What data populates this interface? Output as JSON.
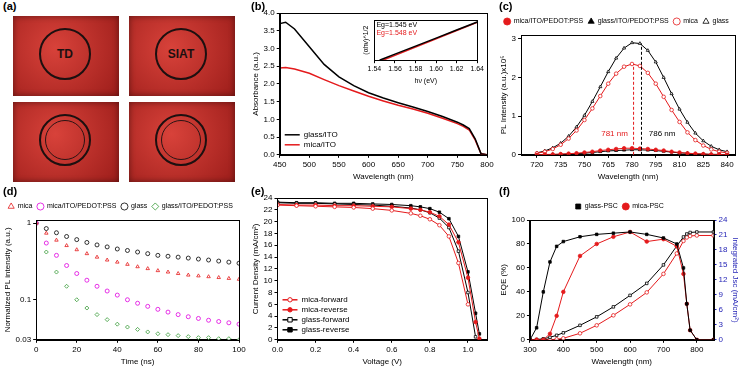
{
  "chart_data": [
    {
      "panel": "(a)",
      "type": "photo",
      "tiles": [
        {
          "label": "TD"
        },
        {
          "label": "SIAT"
        },
        {
          "label": null
        },
        {
          "label": null
        }
      ]
    },
    {
      "panel": "(b)",
      "type": "line",
      "x": [
        450,
        460,
        475,
        500,
        525,
        550,
        575,
        600,
        625,
        650,
        675,
        700,
        725,
        750,
        760,
        770,
        780,
        790,
        800
      ],
      "series": [
        {
          "name": "glass/ITO",
          "color": "#000000",
          "marker": "none",
          "line_style": "solid",
          "values": [
            3.7,
            3.74,
            3.55,
            3.05,
            2.55,
            2.2,
            1.95,
            1.75,
            1.6,
            1.47,
            1.35,
            1.22,
            1.08,
            0.92,
            0.84,
            0.74,
            0.45,
            0.03,
            0.0
          ]
        },
        {
          "name": "mica/ITO",
          "color": "#e41a1c",
          "marker": "none",
          "line_style": "solid",
          "values": [
            2.45,
            2.46,
            2.42,
            2.3,
            2.12,
            1.95,
            1.8,
            1.65,
            1.52,
            1.4,
            1.29,
            1.17,
            1.03,
            0.88,
            0.8,
            0.7,
            0.42,
            0.03,
            0.0
          ]
        }
      ],
      "xlabel": "Wavelength (nm)",
      "ylabel": "Absorbance (a.u.)",
      "xlim": [
        450,
        800
      ],
      "xticks": [
        450,
        500,
        550,
        600,
        650,
        700,
        750,
        800
      ],
      "ylim": [
        0,
        4
      ],
      "yticks": [
        {
          "value": 0,
          "label": "0.0"
        },
        {
          "value": 0.5,
          "label": "0.5"
        },
        {
          "value": 1,
          "label": "1.0"
        },
        {
          "value": 1.5,
          "label": "1.5"
        },
        {
          "value": 2,
          "label": "2.0"
        },
        {
          "value": 2.5,
          "label": "2.5"
        },
        {
          "value": 3,
          "label": "3.0"
        },
        {
          "value": 3.5,
          "label": "3.5"
        },
        {
          "value": 4,
          "label": "4.0"
        }
      ],
      "legend": "lower left",
      "grid": false,
      "inset": {
        "type": "line",
        "x": [
          1.545,
          1.548,
          1.56,
          1.58,
          1.6,
          1.62,
          1.64
        ],
        "series": [
          {
            "color": "#000000",
            "marker": "none",
            "line_style": "solid",
            "values": [
              0,
              0.03,
              0.15,
              0.35,
              0.55,
              0.75,
              0.95
            ]
          },
          {
            "color": "#e41a1c",
            "marker": "none",
            "line_style": "solid",
            "values": [
              null,
              0,
              0.12,
              0.33,
              0.53,
              0.74,
              0.94
            ]
          }
        ],
        "xlabel": "hν (eV)",
        "ylabel": "(αhν)^1/2",
        "xlim": [
          1.54,
          1.64
        ],
        "xticks": [
          1.54,
          1.56,
          1.58,
          {
            "value": 1.6,
            "label": "1.60"
          },
          1.62,
          1.64
        ],
        "ylim": [
          0,
          1
        ],
        "yticks": [],
        "tick_labels": "x",
        "grid": false,
        "annotations": [
          {
            "text": "Eg=1.545 eV",
            "color": "#000000",
            "x": 1.542,
            "y": 0.88
          },
          {
            "text": "Eg=1.548 eV",
            "color": "#e41a1c",
            "x": 1.542,
            "y": 0.68
          }
        ]
      }
    },
    {
      "panel": "(c)",
      "type": "line",
      "x": [
        720,
        725,
        730,
        735,
        740,
        745,
        750,
        755,
        760,
        765,
        770,
        775,
        780,
        785,
        790,
        795,
        800,
        805,
        810,
        815,
        820,
        825,
        830,
        835,
        840
      ],
      "series": [
        {
          "name": "mica/ITO/PEDOT:PSS",
          "color": "#e41a1c",
          "marker": "circle",
          "line_style": "solid",
          "values": [
            0,
            0.01,
            0.01,
            0.02,
            0.03,
            0.04,
            0.06,
            0.08,
            0.11,
            0.13,
            0.15,
            0.17,
            0.17,
            0.16,
            0.15,
            0.13,
            0.11,
            0.08,
            0.06,
            0.04,
            0.03,
            0.02,
            0.01,
            0.01,
            0
          ]
        },
        {
          "name": "glass/ITO/PEDOT:PSS",
          "color": "#000000",
          "marker": "triangle",
          "line_style": "solid",
          "values": [
            0,
            0,
            0.01,
            0.01,
            0.02,
            0.03,
            0.04,
            0.06,
            0.08,
            0.1,
            0.11,
            0.12,
            0.13,
            0.13,
            0.12,
            0.11,
            0.09,
            0.07,
            0.05,
            0.04,
            0.02,
            0.02,
            0.01,
            0.01,
            0
          ]
        },
        {
          "name": "mica",
          "color": "#e41a1c",
          "marker": "open_circle",
          "line_style": "solid",
          "values": [
            0.04,
            0.08,
            0.15,
            0.26,
            0.42,
            0.63,
            0.9,
            1.2,
            1.52,
            1.84,
            2.1,
            2.28,
            2.35,
            2.3,
            2.12,
            1.84,
            1.5,
            1.16,
            0.85,
            0.58,
            0.38,
            0.24,
            0.14,
            0.08,
            0.05
          ]
        },
        {
          "name": "glass",
          "color": "#000000",
          "marker": "open_triangle",
          "line_style": "solid",
          "values": [
            0.05,
            0.1,
            0.18,
            0.3,
            0.48,
            0.72,
            1.02,
            1.38,
            1.76,
            2.15,
            2.5,
            2.76,
            2.9,
            2.88,
            2.7,
            2.4,
            2.0,
            1.58,
            1.18,
            0.84,
            0.56,
            0.36,
            0.22,
            0.13,
            0.08
          ]
        }
      ],
      "xlabel": "Wavelength (nm)",
      "ylabel": "PL Intensity (a.u.)x10⁵",
      "xlim": [
        710,
        845
      ],
      "xticks": [
        720,
        735,
        750,
        765,
        780,
        795,
        810,
        825,
        840
      ],
      "ylim": [
        0,
        3.1
      ],
      "yticks": [
        0,
        1,
        2,
        3
      ],
      "vlines": [
        {
          "x": 781,
          "top": 2.35,
          "color": "#e41a1c"
        },
        {
          "x": 786,
          "top": 2.88,
          "color": "#000000"
        }
      ],
      "annotations": [
        {
          "text": "781 nm",
          "color": "#e41a1c",
          "x": 769,
          "y": 0.55
        },
        {
          "text": "786 nm",
          "color": "#000000",
          "x": 799,
          "y": 0.55
        }
      ],
      "legend": "top",
      "grid": false
    },
    {
      "panel": "(d)",
      "type": "scatter",
      "log": "y",
      "x": [
        0,
        5,
        10,
        15,
        20,
        25,
        30,
        35,
        40,
        45,
        50,
        55,
        60,
        65,
        70,
        75,
        80,
        85,
        90,
        95,
        100
      ],
      "series": [
        {
          "name": "mica",
          "color": "#e41a1c",
          "marker": "open_triangle",
          "values": [
            1,
            0.74,
            0.6,
            0.51,
            0.45,
            0.4,
            0.36,
            0.33,
            0.31,
            0.29,
            0.27,
            0.255,
            0.24,
            0.23,
            0.22,
            0.21,
            0.205,
            0.2,
            0.195,
            0.19,
            0.185
          ]
        },
        {
          "name": "mica/ITO/PEDOT:PSS",
          "color": "#e000e0",
          "marker": "open_circle",
          "values": [
            1,
            0.55,
            0.38,
            0.28,
            0.22,
            0.18,
            0.15,
            0.13,
            0.115,
            0.1,
            0.09,
            0.082,
            0.075,
            0.069,
            0.064,
            0.06,
            0.057,
            0.054,
            0.052,
            0.05,
            0.048
          ]
        },
        {
          "name": "glass",
          "color": "#000000",
          "marker": "open_circle",
          "values": [
            1,
            0.85,
            0.75,
            0.67,
            0.61,
            0.56,
            0.52,
            0.49,
            0.46,
            0.44,
            0.42,
            0.4,
            0.38,
            0.37,
            0.36,
            0.35,
            0.34,
            0.33,
            0.32,
            0.31,
            0.3
          ]
        },
        {
          "name": "glass/ITO/PEDOT:PSS",
          "color": "#339933",
          "marker": "open_diamond",
          "values": [
            1,
            0.42,
            0.23,
            0.15,
            0.1,
            0.078,
            0.064,
            0.055,
            0.048,
            0.044,
            0.041,
            0.038,
            0.036,
            0.035,
            0.034,
            0.033,
            0.032,
            0.032,
            0.031,
            0.031,
            0.03
          ]
        }
      ],
      "xlabel": "Time (ns)",
      "ylabel": "Normalized PL intensity (a.u.)",
      "xlim": [
        0,
        100
      ],
      "xticks": [
        0,
        20,
        40,
        60,
        80,
        100
      ],
      "ylim": [
        0.03,
        1.1
      ],
      "yticks": [
        0.03,
        0.1,
        1
      ],
      "legend": "top",
      "grid": false
    },
    {
      "panel": "(e)",
      "type": "line",
      "x": [
        0,
        0.1,
        0.2,
        0.3,
        0.4,
        0.5,
        0.6,
        0.7,
        0.75,
        0.8,
        0.85,
        0.9,
        0.95,
        1.0,
        1.04,
        1.06
      ],
      "series": [
        {
          "name": "mica-forward",
          "color": "#e41a1c",
          "marker": "open_circle",
          "line_style": "solid",
          "values": [
            22.8,
            22.7,
            22.6,
            22.5,
            22.4,
            22.2,
            21.9,
            21.4,
            21.0,
            20.4,
            19.4,
            17.5,
            13.0,
            6.0,
            null,
            null
          ]
        },
        {
          "name": "mica-reverse",
          "color": "#e41a1c",
          "marker": "circle",
          "line_style": "solid",
          "values": [
            22.9,
            22.8,
            22.8,
            22.7,
            22.7,
            22.6,
            22.5,
            22.2,
            22.0,
            21.6,
            20.9,
            19.5,
            16.5,
            10.5,
            3.0,
            0.2
          ]
        },
        {
          "name": "glass-forward",
          "color": "#000000",
          "marker": "open_square",
          "line_style": "solid",
          "values": [
            23.2,
            23.1,
            23.1,
            23.0,
            22.9,
            22.8,
            22.6,
            22.3,
            22.0,
            21.5,
            20.6,
            19.0,
            15.0,
            8.0,
            0.5,
            null
          ]
        },
        {
          "name": "glass-reverse",
          "color": "#000000",
          "marker": "square",
          "line_style": "solid",
          "values": [
            23.3,
            23.2,
            23.2,
            23.1,
            23.1,
            23.0,
            22.9,
            22.7,
            22.5,
            22.2,
            21.6,
            20.5,
            17.5,
            11.5,
            4.5,
            1.0
          ]
        }
      ],
      "xlabel": "Voltage (V)",
      "ylabel": "Current Density (mA/cm²)",
      "xlim": [
        0,
        1.1
      ],
      "xticks": [
        {
          "value": 0,
          "label": "0.0"
        },
        {
          "value": 0.2,
          "label": "0.2"
        },
        {
          "value": 0.4,
          "label": "0.4"
        },
        {
          "value": 0.6,
          "label": "0.6"
        },
        {
          "value": 0.8,
          "label": "0.8"
        },
        {
          "value": 1.0,
          "label": "1.0"
        }
      ],
      "ylim": [
        0,
        24
      ],
      "yticks": [
        0,
        2,
        4,
        6,
        8,
        10,
        12,
        14,
        16,
        18,
        20,
        22,
        24
      ],
      "legend": "lower left",
      "grid": false
    },
    {
      "panel": "(f)",
      "type": "line",
      "x": [
        300,
        320,
        340,
        360,
        380,
        400,
        450,
        500,
        550,
        600,
        650,
        700,
        740,
        760,
        770,
        780,
        800,
        850
      ],
      "series": [
        {
          "name": "glass-PSC",
          "color": "#000000",
          "marker": "square",
          "line_style": "solid",
          "values": [
            0,
            10,
            40,
            65,
            78,
            82,
            86,
            88,
            89,
            90,
            88,
            85,
            80,
            60,
            30,
            8,
            0,
            0
          ]
        },
        {
          "name": "mica-PSC",
          "color": "#e41a1c",
          "marker": "circle",
          "line_style": "solid",
          "values": [
            0,
            0,
            0,
            5,
            20,
            40,
            70,
            80,
            86,
            90,
            82,
            84,
            78,
            55,
            30,
            8,
            0,
            0
          ]
        },
        {
          "name": "glass-PSC",
          "color": "#000000",
          "marker": "open_square",
          "line_style": "solid",
          "axis": "y2",
          "values": [
            0,
            0.05,
            0.2,
            0.5,
            0.9,
            1.4,
            2.9,
            4.6,
            6.6,
            8.9,
            11.3,
            15.0,
            18.8,
            20.6,
            21.2,
            21.5,
            21.6,
            21.6
          ]
        },
        {
          "name": "mica-PSC",
          "color": "#e41a1c",
          "marker": "open_circle",
          "line_style": "solid",
          "axis": "y2",
          "values": [
            0,
            0,
            0,
            0.02,
            0.1,
            0.3,
            1.3,
            2.9,
            4.9,
            7.1,
            9.5,
            13.2,
            17.3,
            19.8,
            20.5,
            20.8,
            20.9,
            20.9
          ]
        }
      ],
      "xlabel": "Wavelength (nm)",
      "ylabel": "EQE (%)",
      "y2label": "Integrated Jsc (mA/cm²)",
      "xlim": [
        300,
        850
      ],
      "xticks": [
        300,
        400,
        500,
        600,
        700,
        800
      ],
      "ylim": [
        0,
        100
      ],
      "yticks": [
        0,
        20,
        40,
        60,
        80,
        100
      ],
      "y2lim": [
        0,
        24
      ],
      "y2ticks": [
        0,
        3,
        6,
        9,
        12,
        15,
        18,
        21,
        24
      ],
      "legend": "top",
      "grid": false
    }
  ]
}
